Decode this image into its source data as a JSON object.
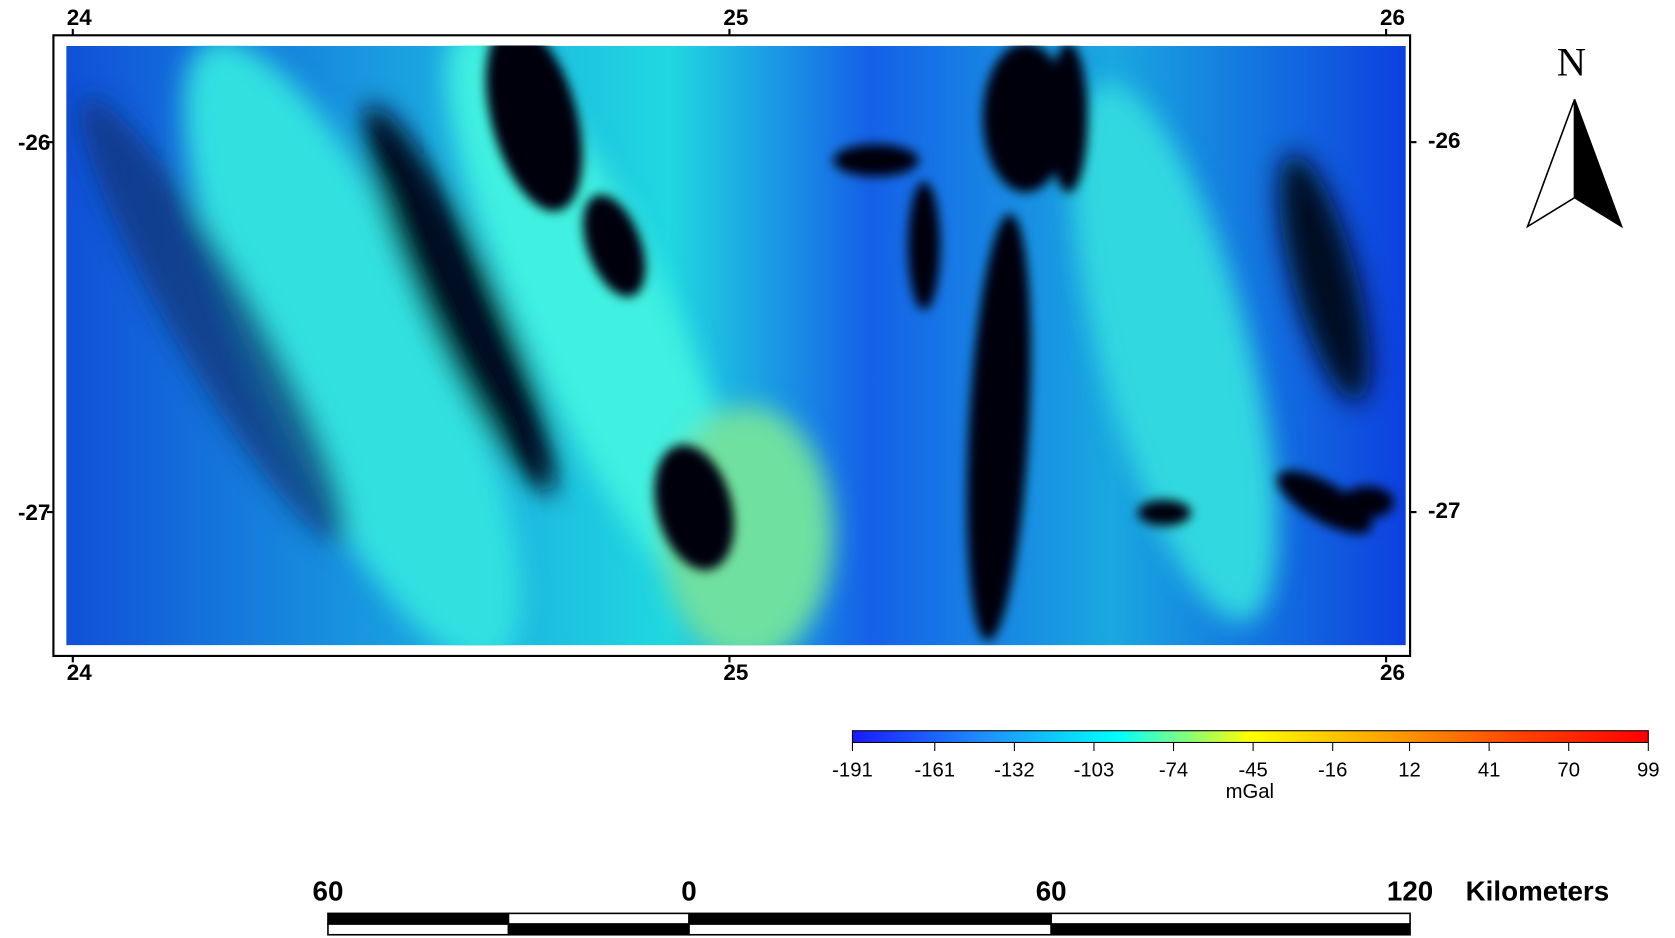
{
  "map": {
    "xticks": [
      24,
      25,
      26
    ],
    "yticks": [
      -26,
      -27
    ],
    "xlim": [
      23.99,
      26.03
    ],
    "ylim": [
      -27.36,
      -25.74
    ],
    "north": "N",
    "colorbar": {
      "ticks": [
        -191,
        -161,
        -132,
        -103,
        -74,
        -45,
        -16,
        12,
        41,
        70,
        99
      ],
      "unit": "mGal",
      "colors": [
        "#1a1aff",
        "#1e90ff",
        "#00ffff",
        "#ffff00",
        "#ffa500",
        "#ff4500",
        "#ff0000"
      ]
    },
    "scale_bar": {
      "labels": [
        "60",
        "0",
        "60",
        "120"
      ],
      "unit": "Kilometers"
    }
  }
}
